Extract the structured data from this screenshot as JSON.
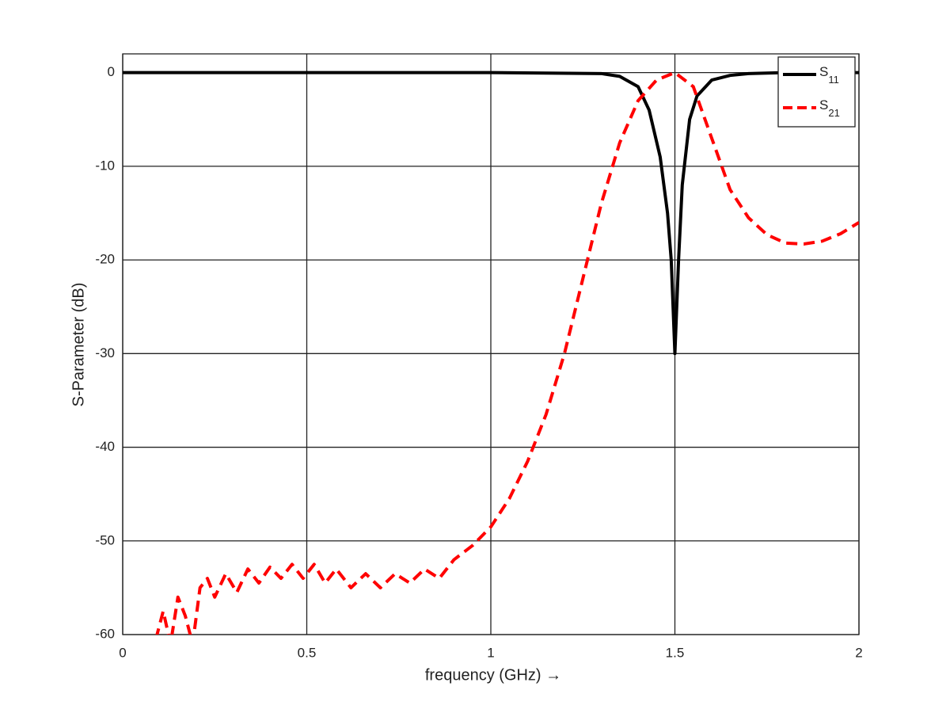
{
  "chart_data": {
    "type": "line",
    "xlabel": "frequency (GHz)    →",
    "ylabel": "S-Parameter (dB)",
    "xlim": [
      0,
      2
    ],
    "xticks": [
      0,
      0.5,
      1,
      1.5,
      2
    ],
    "ylim": [
      -60,
      2
    ],
    "yticks": [
      -60,
      -50,
      -40,
      -30,
      -20,
      -10,
      0
    ],
    "grid": true,
    "legend": "upper right",
    "series": [
      {
        "name": "S11",
        "color": "#000000",
        "dash": false,
        "x": [
          0,
          0.5,
          1.0,
          1.3,
          1.35,
          1.4,
          1.43,
          1.46,
          1.48,
          1.49,
          1.5,
          1.51,
          1.52,
          1.54,
          1.56,
          1.6,
          1.65,
          1.7,
          1.8,
          2.0
        ],
        "values": [
          0,
          0,
          0,
          -0.1,
          -0.4,
          -1.5,
          -4,
          -9,
          -15,
          -20,
          -30,
          -20,
          -12,
          -5,
          -2.5,
          -0.8,
          -0.3,
          -0.1,
          0,
          0
        ]
      },
      {
        "name": "S21",
        "color": "#ff0000",
        "dash": true,
        "x": [
          0.09,
          0.11,
          0.13,
          0.15,
          0.17,
          0.19,
          0.21,
          0.23,
          0.25,
          0.28,
          0.31,
          0.34,
          0.37,
          0.4,
          0.43,
          0.46,
          0.49,
          0.52,
          0.55,
          0.58,
          0.62,
          0.66,
          0.7,
          0.74,
          0.78,
          0.82,
          0.86,
          0.9,
          0.95,
          1.0,
          1.05,
          1.1,
          1.15,
          1.2,
          1.25,
          1.3,
          1.35,
          1.4,
          1.45,
          1.5,
          1.55,
          1.6,
          1.65,
          1.7,
          1.75,
          1.8,
          1.85,
          1.9,
          1.95,
          2.0
        ],
        "values": [
          -60.5,
          -57.5,
          -61,
          -56,
          -58,
          -61,
          -55,
          -54,
          -56,
          -53.5,
          -55.5,
          -53,
          -54.5,
          -52.8,
          -54,
          -52.5,
          -54,
          -52.5,
          -54.5,
          -53,
          -55,
          -53.5,
          -55,
          -53.5,
          -54.5,
          -53,
          -54,
          -52,
          -50.5,
          -48.5,
          -45.5,
          -41.5,
          -36.5,
          -30,
          -22,
          -14,
          -7.5,
          -3,
          -0.8,
          0,
          -1.5,
          -7,
          -12.5,
          -15.5,
          -17.3,
          -18.2,
          -18.3,
          -18,
          -17.2,
          -16
        ]
      }
    ]
  }
}
